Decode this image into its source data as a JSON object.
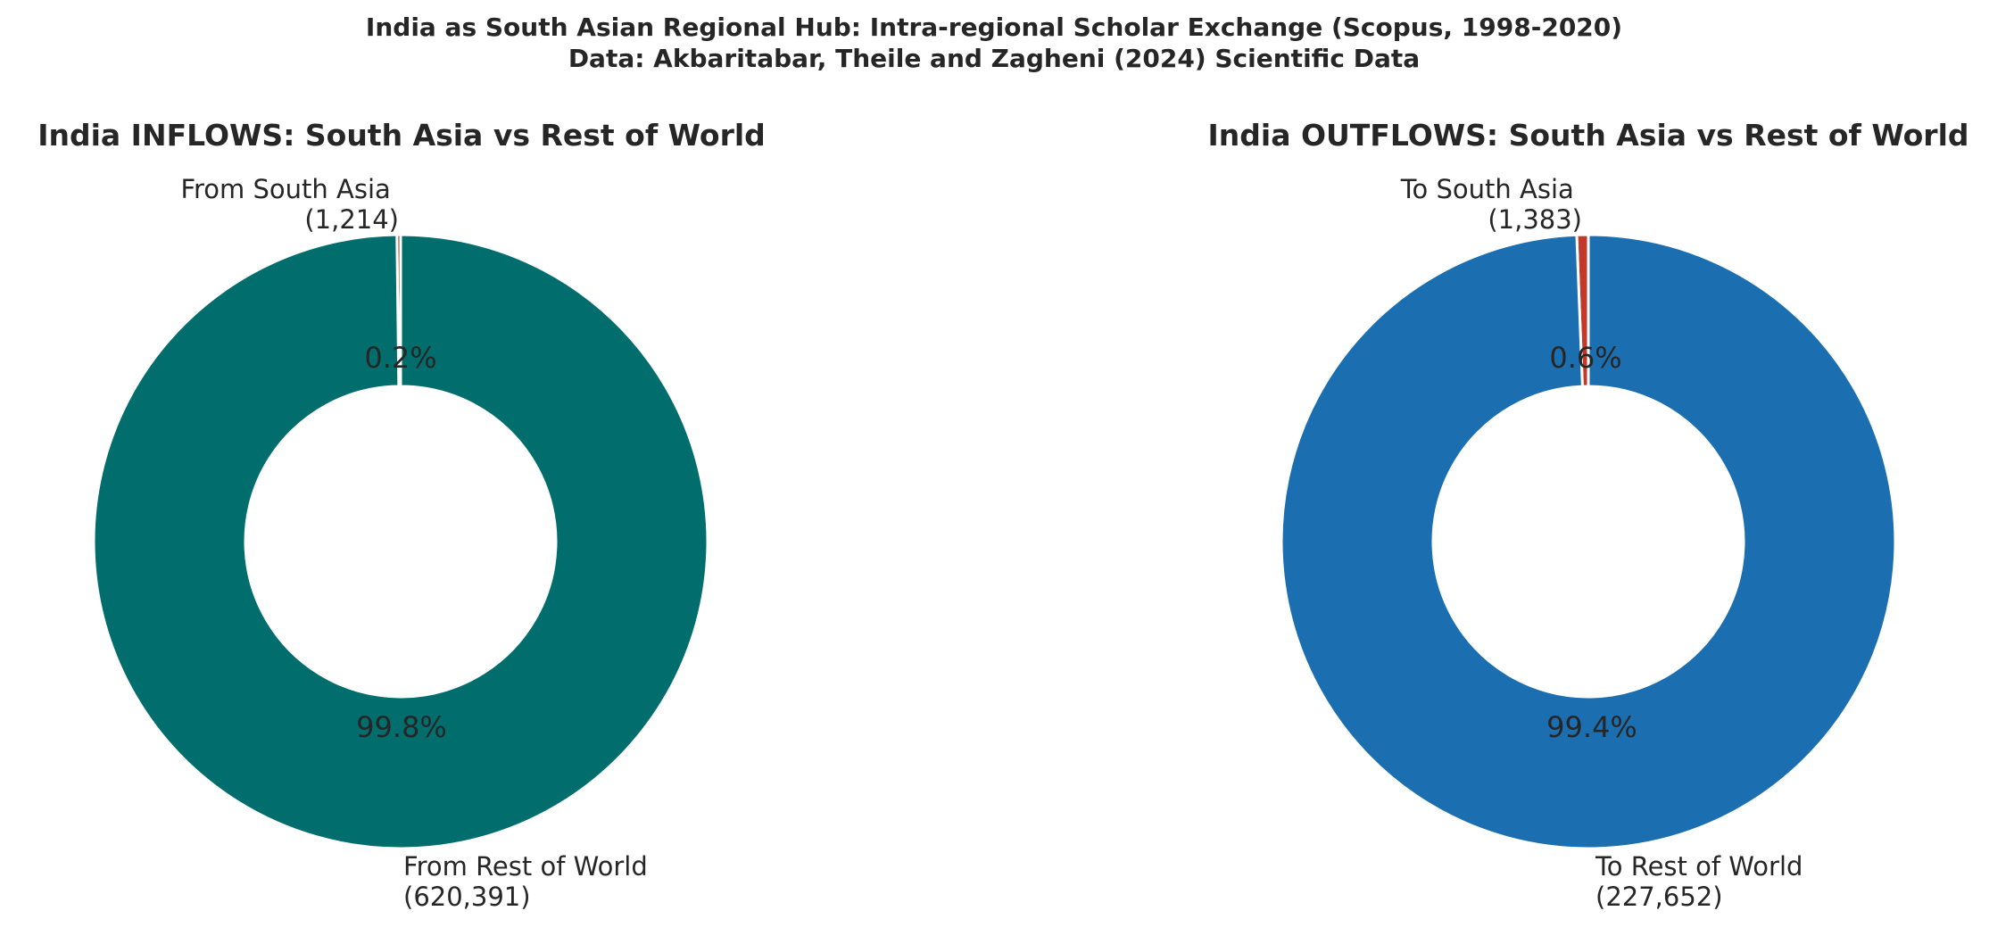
{
  "suptitle_line1": "India as South Asian Regional Hub: Intra-regional Scholar Exchange (Scopus, 1998-2020)",
  "suptitle_line2": "Data: Akbaritabar, Theile and Zagheni (2024) Scientific Data",
  "chart_data": [
    {
      "type": "pie",
      "donut": true,
      "title": "India INFLOWS: South Asia vs Rest of World",
      "slices": [
        {
          "label_line1": "From South Asia",
          "label_line2": "(1,214)",
          "value": 1214,
          "pct_text": "0.2%",
          "color": "#8B4513"
        },
        {
          "label_line1": "From Rest of World",
          "label_line2": "(620,391)",
          "value": 620391,
          "pct_text": "99.8%",
          "color": "#016e6d"
        }
      ]
    },
    {
      "type": "pie",
      "donut": true,
      "title": "India OUTFLOWS: South Asia vs Rest of World",
      "slices": [
        {
          "label_line1": "To South Asia",
          "label_line2": "(1,383)",
          "value": 1383,
          "pct_text": "0.6%",
          "color": "#c0392b"
        },
        {
          "label_line1": "To Rest of World",
          "label_line2": "(227,652)",
          "value": 227652,
          "pct_text": "99.4%",
          "color": "#1b6fb0"
        }
      ]
    }
  ]
}
